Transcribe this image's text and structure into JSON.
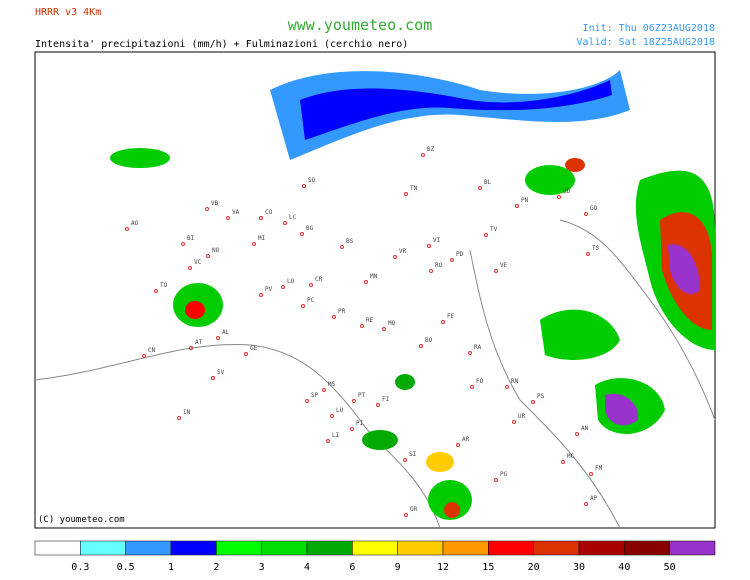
{
  "header": {
    "model": "HRRR v3 4Km",
    "site": "www.youmeteo.com",
    "init": "Init: Thu 06Z23AUG2018",
    "valid": "Valid: Sat 18Z25AUG2018",
    "subtitle": "Intensita' precipitazioni (mm/h) + Fulminazioni (cerchio nero)"
  },
  "map": {
    "copyright": "(C) youmeteo.com",
    "cities": [
      "BZ",
      "TN",
      "BL",
      "PN",
      "UD",
      "GO",
      "TS",
      "SO",
      "VB",
      "VA",
      "CO",
      "LC",
      "BG",
      "BS",
      "VR",
      "VI",
      "PD",
      "TV",
      "VE",
      "AO",
      "BI",
      "NO",
      "MI",
      "LO",
      "CR",
      "MN",
      "RO",
      "FE",
      "TO",
      "VC",
      "PV",
      "PC",
      "PR",
      "RE",
      "MO",
      "BO",
      "RA",
      "FO",
      "RN",
      "PS",
      "GE",
      "SV",
      "CN",
      "AT",
      "AL",
      "IN",
      "SP",
      "MS",
      "LU",
      "PT",
      "FI",
      "PI",
      "LI",
      "SI",
      "AR",
      "PG",
      "GR",
      "UR",
      "AN",
      "MC",
      "FM",
      "AP"
    ]
  },
  "scale": {
    "colors": [
      "#ffffff",
      "#66ffff",
      "#3399ff",
      "#0000ff",
      "#00ff00",
      "#00dd00",
      "#00aa00",
      "#ffff00",
      "#ffcc00",
      "#ff9900",
      "#ff0000",
      "#dd3300",
      "#aa0000",
      "#880000",
      "#9933cc"
    ],
    "labels": [
      0.3,
      0.5,
      1,
      2,
      3,
      4,
      6,
      9,
      12,
      15,
      20,
      30,
      40,
      50
    ]
  }
}
